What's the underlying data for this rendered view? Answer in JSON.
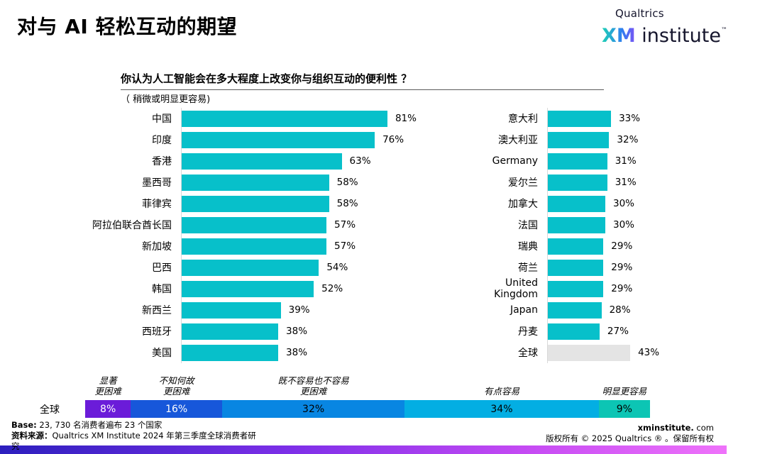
{
  "header": {
    "title": "对与 AI 轻松互动的期望",
    "logo": {
      "brand": "Qualtrics",
      "xm": "XM",
      "institute": " institute",
      "tm": "™"
    }
  },
  "question": {
    "text": "你认为人工智能会在多大程度上改变你与组织互动的便利性 ？",
    "qualifier": "（ 稍微或明显更容易)"
  },
  "chart_data": [
    {
      "name": "country-bars-left",
      "type": "bar",
      "orientation": "horizontal",
      "unit": "%",
      "xlim": [
        0,
        100
      ],
      "grid": false,
      "bar_color": "#07c0ca",
      "categories": [
        "中国",
        "印度",
        "香港",
        "墨西哥",
        "菲律宾",
        "阿拉伯联合酋长国",
        "新加坡",
        "巴西",
        "韩国",
        "新西兰",
        "西班牙",
        "美国"
      ],
      "values": [
        81,
        76,
        63,
        58,
        58,
        57,
        57,
        54,
        52,
        39,
        38,
        38
      ]
    },
    {
      "name": "country-bars-right",
      "type": "bar",
      "orientation": "horizontal",
      "unit": "%",
      "xlim": [
        0,
        100
      ],
      "grid": false,
      "bar_color": "#07c0ca",
      "categories": [
        "意大利",
        "澳大利亚",
        "Germany",
        "爱尔兰",
        "加拿大",
        "法国",
        "瑞典",
        "荷兰",
        "United Kingdom",
        "Japan",
        "丹麦",
        "全球"
      ],
      "values": [
        33,
        32,
        31,
        31,
        30,
        30,
        29,
        29,
        29,
        28,
        27,
        43
      ],
      "bar_color_overrides": {
        "全球": "#e4e4e4"
      }
    },
    {
      "name": "global-response-distribution",
      "type": "stacked_bar",
      "row_label": "全球",
      "unit": "%",
      "segments": [
        {
          "label": "显著\n更困难",
          "value": 8,
          "color": "#6b1cd9",
          "text_color": "#ffffff"
        },
        {
          "label": "不知何故\n更困难",
          "value": 16,
          "color": "#1757da",
          "text_color": "#ffffff"
        },
        {
          "label": "既不容易也不容易\n更困难",
          "value": 32,
          "color": "#0886e2",
          "text_color": "#000000"
        },
        {
          "label": "有点容易",
          "value": 34,
          "color": "#03aee3",
          "text_color": "#000000"
        },
        {
          "label": "明显更容易",
          "value": 9,
          "color": "#0cc5b4",
          "text_color": "#000000"
        }
      ]
    }
  ],
  "footer": {
    "base_label": "Base:",
    "base_text": "  23, 730 名消费者遍布 23 个国家",
    "source_label": "资料来源：",
    "source_text": "Qualtrics XM Institute 2024 年第三季度全球消费者研究",
    "site_bold": "xminstitute.",
    "site_rest": " com",
    "copyright": "版权所有 © 2025 Qualtrics ® 。保留所有权"
  },
  "colors": {
    "bar_teal": "#07c0ca",
    "global_gray": "#e4e4e4",
    "accent_gradient_left": "#2c1fbe",
    "accent_gradient_right": "#ef73fa"
  }
}
